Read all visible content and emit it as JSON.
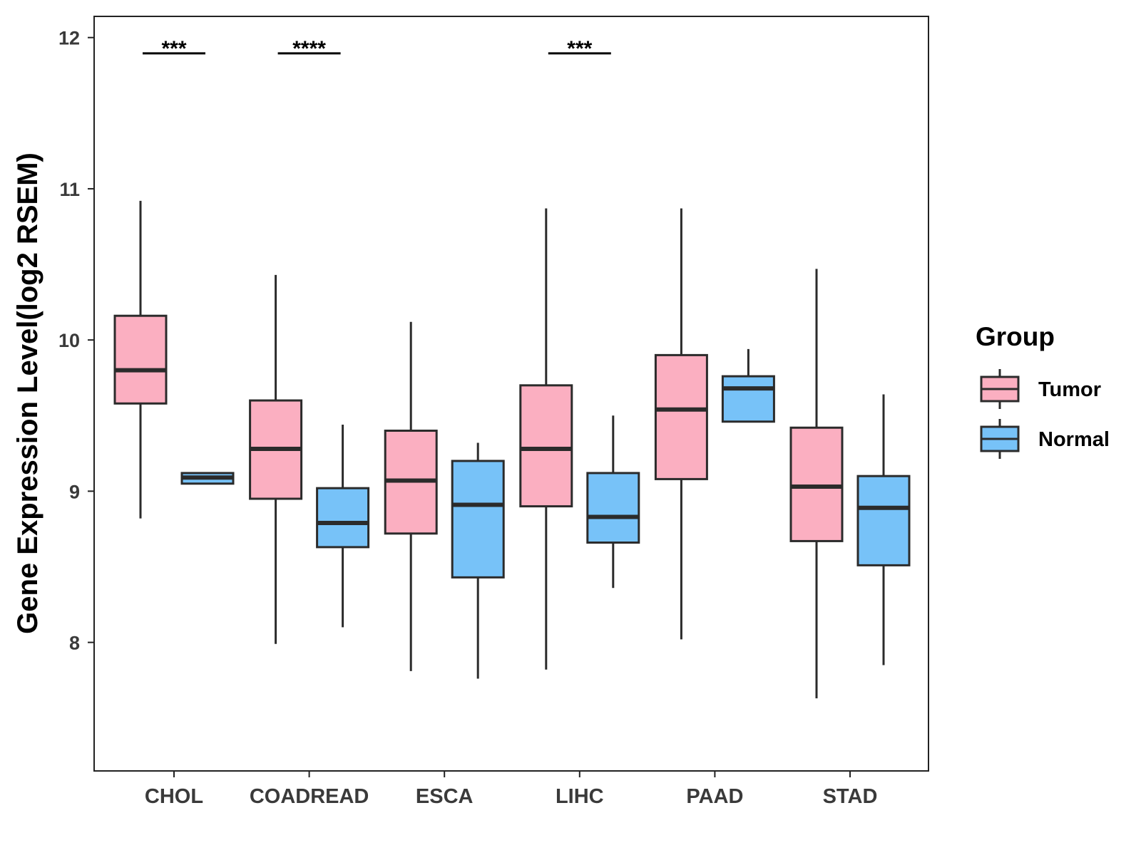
{
  "chart_data": {
    "type": "boxplot",
    "title": "",
    "xlabel": "",
    "ylabel": "Gene Expression Level(log2 RSEM)",
    "ylim": [
      7.15,
      12.14
    ],
    "yticks": [
      8,
      9,
      10,
      11,
      12
    ],
    "grid": false,
    "categories": [
      "CHOL",
      "COADREAD",
      "ESCA",
      "LIHC",
      "PAAD",
      "STAD"
    ],
    "legend": {
      "title": "Group",
      "position": "right",
      "entries": [
        {
          "name": "Tumor",
          "color": "#FBAFC1"
        },
        {
          "name": "Normal",
          "color": "#77C2F8"
        }
      ]
    },
    "series": [
      {
        "name": "Tumor",
        "color": "#FBAFC1",
        "boxes": [
          {
            "whisker_low": 8.82,
            "q1": 9.58,
            "median": 9.8,
            "q3": 10.16,
            "whisker_high": 10.92
          },
          {
            "whisker_low": 7.99,
            "q1": 8.95,
            "median": 9.28,
            "q3": 9.6,
            "whisker_high": 10.43
          },
          {
            "whisker_low": 7.81,
            "q1": 8.72,
            "median": 9.07,
            "q3": 9.4,
            "whisker_high": 10.12
          },
          {
            "whisker_low": 7.82,
            "q1": 8.9,
            "median": 9.28,
            "q3": 9.7,
            "whisker_high": 10.87
          },
          {
            "whisker_low": 8.02,
            "q1": 9.08,
            "median": 9.54,
            "q3": 9.9,
            "whisker_high": 10.87
          },
          {
            "whisker_low": 7.63,
            "q1": 8.67,
            "median": 9.03,
            "q3": 9.42,
            "whisker_high": 10.47
          }
        ]
      },
      {
        "name": "Normal",
        "color": "#77C2F8",
        "boxes": [
          {
            "whisker_low": 9.05,
            "q1": 9.05,
            "median": 9.09,
            "q3": 9.12,
            "whisker_high": 9.12
          },
          {
            "whisker_low": 8.1,
            "q1": 8.63,
            "median": 8.79,
            "q3": 9.02,
            "whisker_high": 9.44
          },
          {
            "whisker_low": 7.76,
            "q1": 8.43,
            "median": 8.91,
            "q3": 9.2,
            "whisker_high": 9.32
          },
          {
            "whisker_low": 8.36,
            "q1": 8.66,
            "median": 8.83,
            "q3": 9.12,
            "whisker_high": 9.5
          },
          {
            "whisker_low": 9.46,
            "q1": 9.46,
            "median": 9.68,
            "q3": 9.76,
            "whisker_high": 9.94
          },
          {
            "whisker_low": 7.85,
            "q1": 8.51,
            "median": 8.89,
            "q3": 9.1,
            "whisker_high": 9.64
          }
        ]
      }
    ],
    "annotations": [
      {
        "category": "CHOL",
        "label": "***",
        "y": 11.9
      },
      {
        "category": "COADREAD",
        "label": "****",
        "y": 11.9
      },
      {
        "category": "LIHC",
        "label": "***",
        "y": 11.9
      }
    ]
  }
}
